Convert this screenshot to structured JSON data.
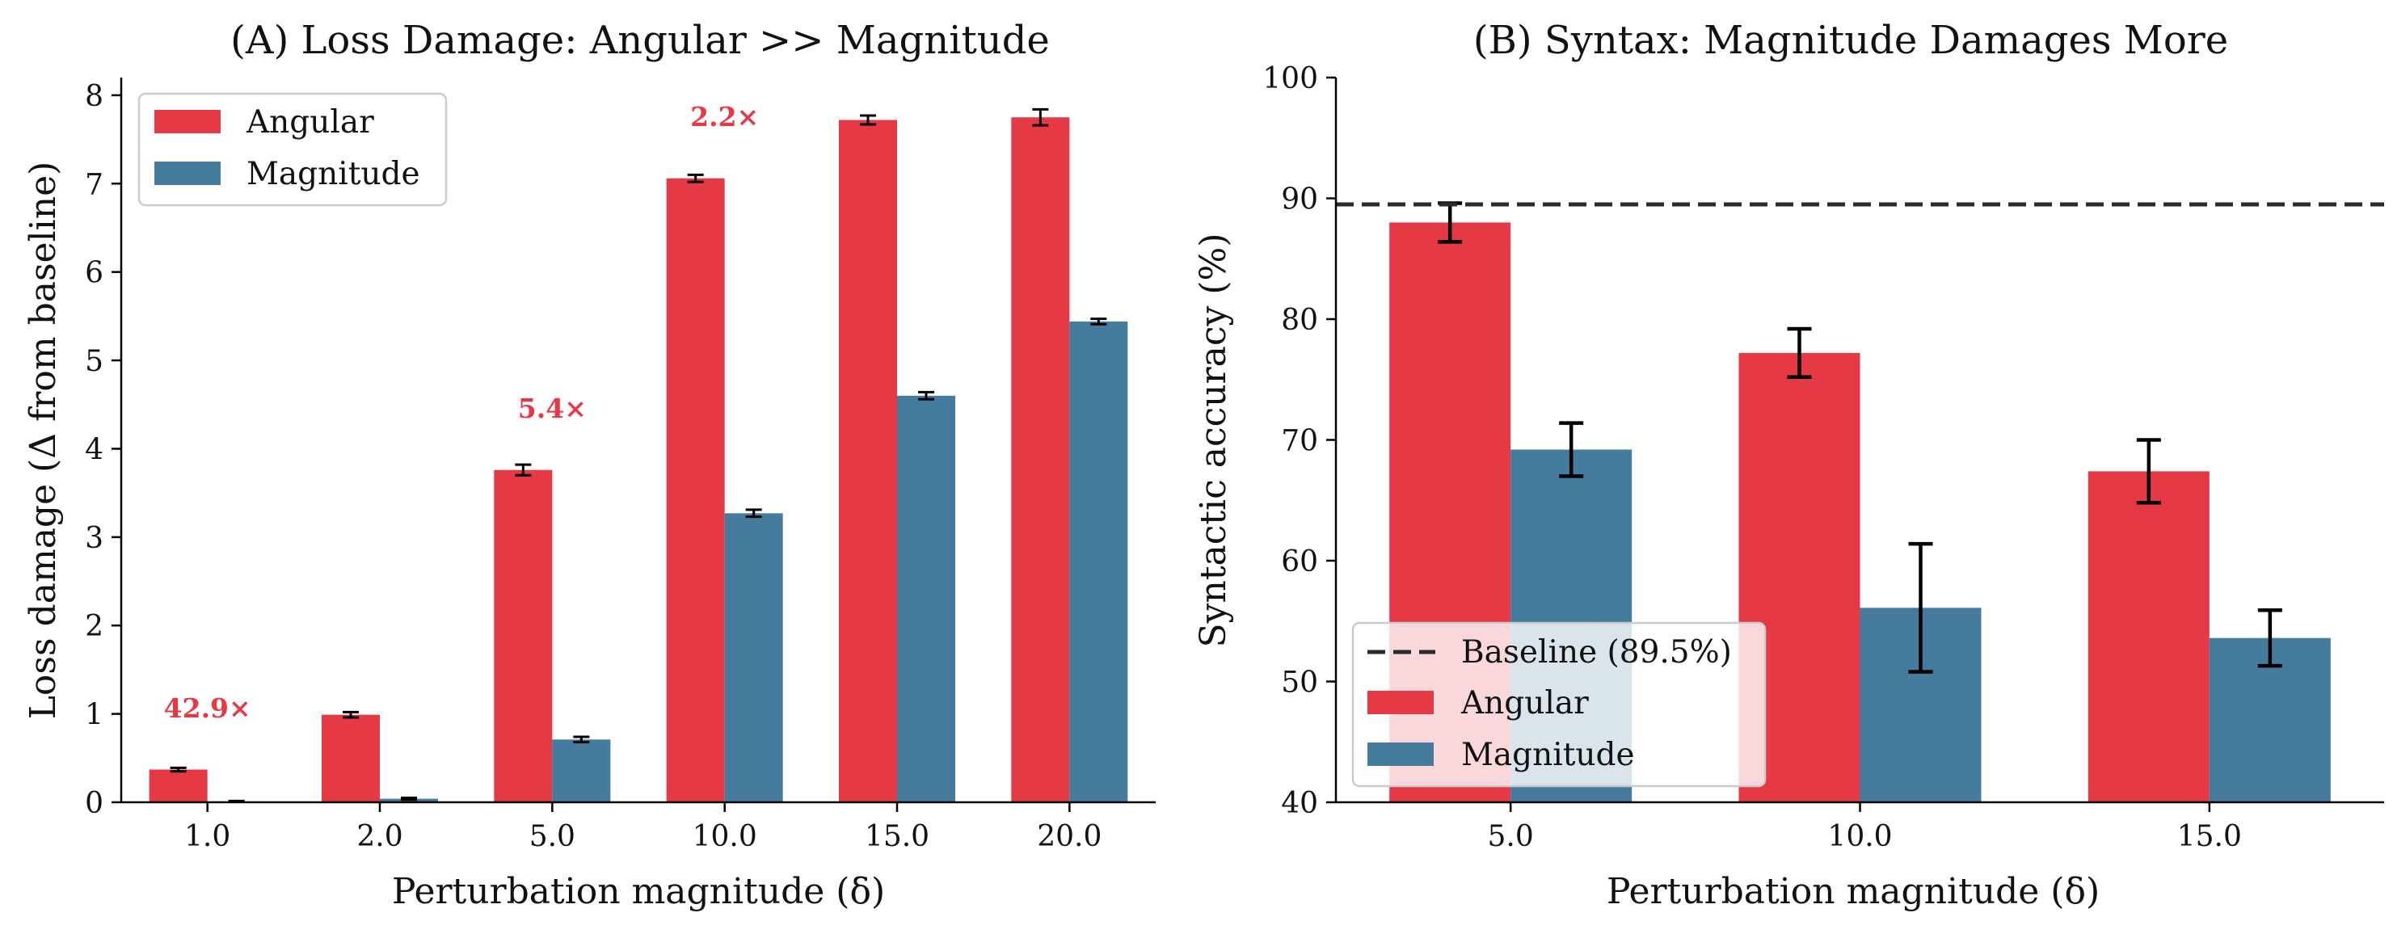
{
  "colors": {
    "angular": "#e63946",
    "magnitude": "#457b9d",
    "baseline": "#2b2b2b",
    "error": "#000000",
    "axis": "#000000"
  },
  "chart_data": [
    {
      "type": "bar",
      "title": "(A) Loss Damage: Angular >> Magnitude",
      "xlabel": "Perturbation magnitude (δ)",
      "ylabel": "Loss damage (Δ from baseline)",
      "categories": [
        "1.0",
        "2.0",
        "5.0",
        "10.0",
        "15.0",
        "20.0"
      ],
      "ylim": [
        0,
        8.2
      ],
      "yticks": [
        0,
        1,
        2,
        3,
        4,
        5,
        6,
        7,
        8
      ],
      "series": [
        {
          "name": "Angular",
          "values": [
            0.37,
            0.99,
            3.76,
            7.06,
            7.72,
            7.75
          ],
          "errors": [
            0.02,
            0.03,
            0.06,
            0.04,
            0.05,
            0.09
          ]
        },
        {
          "name": "Magnitude",
          "values": [
            0.01,
            0.04,
            0.71,
            3.27,
            4.6,
            5.44
          ],
          "errors": [
            0.005,
            0.01,
            0.03,
            0.04,
            0.04,
            0.03
          ]
        }
      ],
      "annotations": [
        {
          "text": "42.9×",
          "category": "1.0",
          "y": 0.96
        },
        {
          "text": "5.4×",
          "category": "5.0",
          "y": 4.35
        },
        {
          "text": "2.2×",
          "category": "10.0",
          "y": 7.65
        }
      ],
      "legend": {
        "position": "upper-left",
        "entries": [
          "Angular",
          "Magnitude"
        ]
      },
      "grid": false
    },
    {
      "type": "bar",
      "title": "(B) Syntax: Magnitude Damages More",
      "xlabel": "Perturbation magnitude (δ)",
      "ylabel": "Syntactic accuracy (%)",
      "categories": [
        "5.0",
        "10.0",
        "15.0"
      ],
      "ylim": [
        40,
        100
      ],
      "yticks": [
        40,
        50,
        60,
        70,
        80,
        90,
        100
      ],
      "series": [
        {
          "name": "Angular",
          "values": [
            88.0,
            77.2,
            67.4
          ],
          "errors": [
            1.6,
            2.0,
            2.6
          ]
        },
        {
          "name": "Magnitude",
          "values": [
            69.2,
            56.1,
            53.6
          ],
          "errors": [
            2.2,
            5.3,
            2.3
          ]
        }
      ],
      "baseline": {
        "label": "Baseline (89.5%)",
        "value": 89.5
      },
      "legend": {
        "position": "lower-left",
        "entries": [
          "Baseline (89.5%)",
          "Angular",
          "Magnitude"
        ]
      },
      "grid": false
    }
  ]
}
